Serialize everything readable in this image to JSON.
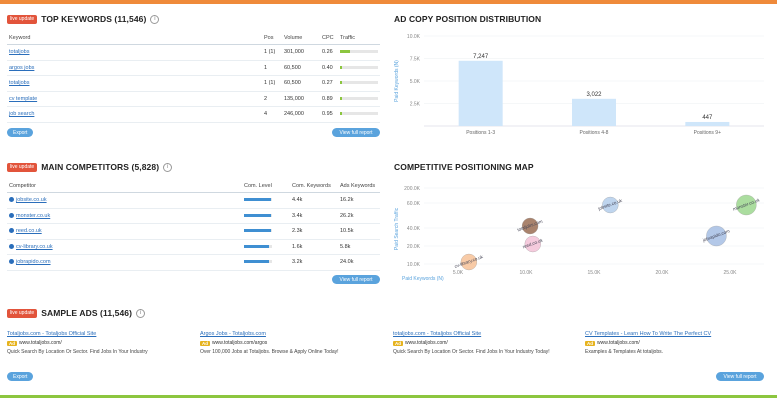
{
  "colors": {
    "accent": "#ef8a3a",
    "green": "#8cc63f",
    "blue": "#5aa3dd",
    "badge": "#e2543b",
    "link": "#2a6ebb"
  },
  "keywords": {
    "badge": "live update",
    "title": "TOP KEYWORDS (11,546)",
    "info": "i",
    "headers": [
      "Keyword",
      "Pos",
      "Volume",
      "CPC",
      "Traffic"
    ],
    "rows": [
      {
        "kw": "totaljobs",
        "pos": "1 (1)",
        "vol": "301,000",
        "cpc": "0.26",
        "traffic": 0.25
      },
      {
        "kw": "argos jobs",
        "pos": "1",
        "vol": "60,500",
        "cpc": "0.40",
        "traffic": 0.05
      },
      {
        "kw": "totaljobs",
        "pos": "1 (1)",
        "vol": "60,500",
        "cpc": "0.27",
        "traffic": 0.05
      },
      {
        "kw": "cv template",
        "pos": "2",
        "vol": "135,000",
        "cpc": "0.89",
        "traffic": 0.05
      },
      {
        "kw": "job search",
        "pos": "4",
        "vol": "246,000",
        "cpc": "0.95",
        "traffic": 0.05
      }
    ],
    "export": "Export",
    "full": "View full report"
  },
  "adcopy": {
    "title": "AD COPY POSITION DISTRIBUTION",
    "ylabel": "Paid Keywords (N)",
    "chart_data": {
      "type": "bar",
      "categories": [
        "Positions 1-3",
        "Positions 4-8",
        "Positions 9+"
      ],
      "values": [
        7247,
        3022,
        447
      ],
      "value_labels": [
        "7,247",
        "3,022",
        "447"
      ],
      "ylim": [
        0,
        10000
      ],
      "yticks": [
        "10.0K",
        "7.5K",
        "5.0K",
        "2.5K"
      ]
    }
  },
  "competitors": {
    "badge": "live update",
    "title": "MAIN COMPETITORS (5,828)",
    "info": "i",
    "headers": [
      "Competitor",
      "Com. Level",
      "Com. Keywords",
      "Ads Keywords"
    ],
    "rows": [
      {
        "name": "jobsite.co.uk",
        "level": 0.95,
        "ck": "4.4k",
        "ak": "16.2k"
      },
      {
        "name": "monster.co.uk",
        "level": 0.95,
        "ck": "3.4k",
        "ak": "26.2k"
      },
      {
        "name": "reed.co.uk",
        "level": 0.95,
        "ck": "2.3k",
        "ak": "10.5k"
      },
      {
        "name": "cv-library.co.uk",
        "level": 0.9,
        "ck": "1.6k",
        "ak": "5.8k"
      },
      {
        "name": "jobrapido.com",
        "level": 0.9,
        "ck": "3.2k",
        "ak": "24.0k"
      }
    ],
    "full": "View full report"
  },
  "map": {
    "title": "COMPETITIVE POSITIONING MAP",
    "ylabel": "Paid Search Traffic",
    "xlabel": "Paid Keywords (N)",
    "chart_data": {
      "type": "scatter",
      "xticks": [
        "5.0K",
        "10.0K",
        "15.0K",
        "20.0K",
        "25.0K"
      ],
      "yticks": [
        "200.0K",
        "60.0K",
        "40.0K",
        "20.0K",
        "10.0K"
      ],
      "points": [
        {
          "label": "jobsite.co.uk",
          "x": 16.2,
          "y": 60000,
          "color": "#a9c7e8"
        },
        {
          "label": "monster.co.uk",
          "x": 26.2,
          "y": 60000,
          "color": "#8fd17f"
        },
        {
          "label": "totaljobs.com",
          "x": 10.3,
          "y": 40000,
          "color": "#8c5a3c"
        },
        {
          "label": "jobrapido.com",
          "x": 24.0,
          "y": 25000,
          "color": "#9ab6e0"
        },
        {
          "label": "reed.co.uk",
          "x": 10.5,
          "y": 20000,
          "color": "#f1b9d2"
        },
        {
          "label": "cv-library.co.uk",
          "x": 5.8,
          "y": 10000,
          "color": "#f6b98a"
        }
      ]
    }
  },
  "ads": {
    "badge": "live update",
    "title": "SAMPLE ADS (11,546)",
    "info": "i",
    "items": [
      {
        "title": "Totaljobs.com - Totaljobs Official Site",
        "tag": "Ad",
        "url": "www.totaljobs.com/",
        "desc": "Quick Search By Location Or Sector. Find Jobs In Your Industry"
      },
      {
        "title": "Argos Jobs - Totaljobs.com",
        "tag": "Ad",
        "url": "www.totaljobs.com/argos",
        "desc": "Over 100,000 Jobs at Totaljobs. Browse & Apply Online Today!"
      },
      {
        "title": "totaljobs.com - Totaljobs Official Site",
        "tag": "Ad",
        "url": "www.totaljobs.com/",
        "desc": "Quick Search By Location Or Sector. Find Jobs In Your Industry Today!"
      },
      {
        "title": "CV Templates - Learn How To Write The Perfect CV",
        "tag": "Ad",
        "url": "www.totaljobs.com/",
        "desc": "Examples & Templates At totaljobs."
      }
    ],
    "export": "Export",
    "full": "View full report"
  }
}
